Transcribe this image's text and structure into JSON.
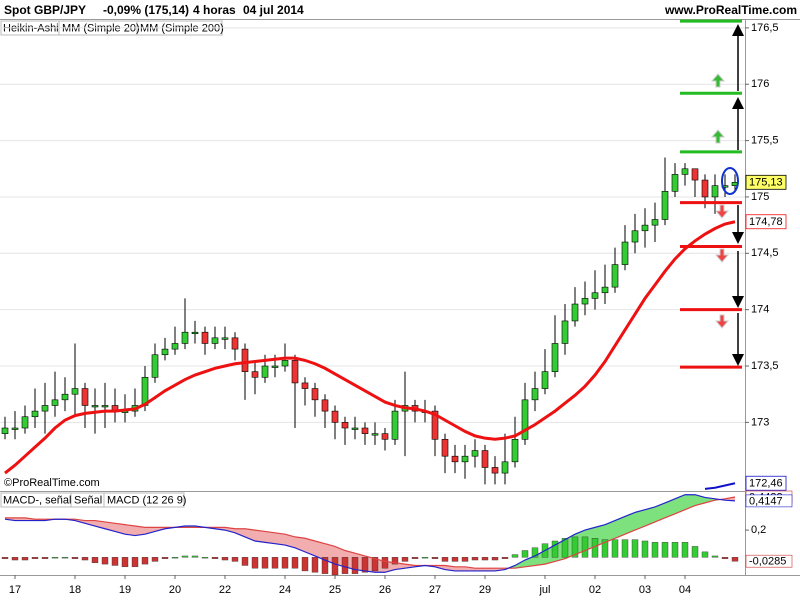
{
  "header": {
    "symbol": "Spot GBP/JPY",
    "change": "-0,09% (175,14)",
    "timeframe": "4 horas",
    "date": "04 jul 2014",
    "site": "www.ProRealTime.com"
  },
  "watermark": "©ProRealTime.com",
  "chart_data": [
    {
      "type": "candlestick",
      "name": "Heikin-Ashi",
      "up_color": "#33cc33",
      "down_color": "#ee3333",
      "categories": [
        null,
        "17",
        null,
        null,
        null,
        null,
        null,
        "18",
        null,
        null,
        null,
        null,
        "19",
        null,
        null,
        null,
        null,
        "20",
        null,
        null,
        null,
        null,
        "22",
        null,
        null,
        null,
        null,
        null,
        "24",
        null,
        null,
        null,
        null,
        "25",
        null,
        null,
        null,
        null,
        "26",
        null,
        null,
        null,
        null,
        "27",
        null,
        null,
        null,
        null,
        "29",
        null,
        null,
        null,
        null,
        null,
        "jul",
        null,
        null,
        null,
        null,
        "02",
        null,
        null,
        null,
        null,
        "03",
        null,
        null,
        null,
        "04",
        null,
        null,
        null,
        null,
        null
      ],
      "open": [
        172.9,
        172.95,
        172.95,
        173.05,
        173.1,
        173.15,
        173.2,
        173.25,
        173.3,
        173.15,
        173.15,
        173.15,
        173.1,
        173.1,
        173.15,
        173.4,
        173.6,
        173.65,
        173.7,
        173.8,
        173.8,
        173.7,
        173.75,
        173.75,
        173.65,
        173.45,
        173.4,
        173.5,
        173.5,
        173.55,
        173.35,
        173.3,
        173.2,
        173.1,
        173.0,
        172.95,
        172.95,
        172.9,
        172.9,
        172.85,
        173.1,
        173.15,
        173.1,
        173.1,
        172.85,
        172.7,
        172.65,
        172.7,
        172.75,
        172.6,
        172.55,
        172.65,
        172.85,
        173.2,
        173.3,
        173.45,
        173.7,
        173.9,
        174.05,
        174.1,
        174.15,
        174.2,
        174.4,
        174.6,
        174.7,
        174.75,
        174.8,
        175.05,
        175.2,
        175.25,
        175.15,
        175.0,
        175.1,
        175.1
      ],
      "high": [
        173.05,
        173.1,
        173.15,
        173.3,
        173.35,
        173.45,
        173.4,
        173.7,
        173.35,
        173.3,
        173.35,
        173.3,
        173.25,
        173.3,
        173.5,
        173.7,
        173.75,
        173.85,
        174.1,
        173.9,
        173.85,
        173.85,
        173.85,
        173.8,
        173.7,
        173.55,
        173.6,
        173.6,
        173.7,
        173.6,
        173.4,
        173.35,
        173.25,
        173.15,
        173.05,
        173.05,
        173.0,
        173.0,
        172.95,
        173.2,
        173.45,
        173.2,
        173.2,
        173.15,
        172.9,
        172.8,
        172.8,
        172.85,
        172.8,
        172.7,
        172.9,
        173.05,
        173.35,
        173.45,
        173.65,
        173.95,
        174.05,
        174.2,
        174.25,
        174.35,
        174.4,
        174.55,
        174.75,
        174.85,
        174.9,
        174.95,
        175.35,
        175.3,
        175.3,
        175.25,
        175.2,
        175.2,
        175.2,
        175.2
      ],
      "low": [
        172.85,
        172.85,
        172.9,
        172.95,
        172.9,
        173.05,
        173.1,
        173.05,
        172.95,
        172.9,
        172.95,
        173.0,
        173.0,
        173.05,
        173.1,
        173.35,
        173.55,
        173.6,
        173.65,
        173.7,
        173.6,
        173.65,
        173.65,
        173.55,
        173.2,
        173.25,
        173.35,
        173.4,
        173.45,
        172.95,
        173.15,
        173.05,
        172.95,
        172.85,
        172.8,
        172.85,
        172.8,
        172.8,
        172.75,
        172.8,
        172.7,
        173.0,
        173.0,
        172.7,
        172.55,
        172.55,
        172.5,
        172.6,
        172.45,
        172.45,
        172.45,
        172.6,
        172.8,
        173.1,
        173.25,
        173.4,
        173.6,
        173.85,
        173.95,
        174.0,
        174.05,
        174.15,
        174.35,
        174.5,
        174.55,
        174.6,
        174.75,
        175.0,
        175.1,
        175.0,
        174.9,
        174.85,
        175.0,
        175.05
      ],
      "close": [
        172.95,
        172.95,
        173.05,
        173.1,
        173.15,
        173.2,
        173.25,
        173.3,
        173.15,
        173.15,
        173.15,
        173.1,
        173.1,
        173.15,
        173.4,
        173.6,
        173.65,
        173.7,
        173.8,
        173.8,
        173.7,
        173.75,
        173.75,
        173.65,
        173.45,
        173.4,
        173.5,
        173.5,
        173.55,
        173.35,
        173.3,
        173.2,
        173.1,
        173.0,
        172.95,
        172.95,
        172.9,
        172.9,
        172.85,
        173.1,
        173.15,
        173.1,
        173.1,
        172.85,
        172.7,
        172.65,
        172.7,
        172.75,
        172.6,
        172.55,
        172.65,
        172.85,
        173.2,
        173.3,
        173.45,
        173.7,
        173.9,
        174.05,
        174.1,
        174.15,
        174.2,
        174.4,
        174.6,
        174.7,
        174.75,
        174.8,
        175.05,
        175.2,
        175.25,
        175.15,
        175.0,
        175.1,
        175.1,
        175.13
      ],
      "series": [
        {
          "name": "MM (Simple 20)",
          "color": "#ee1111",
          "values": [
            172.55,
            172.62,
            172.7,
            172.78,
            172.86,
            172.95,
            173.02,
            173.06,
            173.08,
            173.09,
            173.1,
            173.1,
            173.11,
            173.12,
            173.16,
            173.22,
            173.28,
            173.33,
            173.38,
            173.42,
            173.45,
            173.48,
            173.5,
            173.52,
            173.53,
            173.54,
            173.55,
            173.56,
            173.57,
            173.57,
            173.55,
            173.52,
            173.48,
            173.43,
            173.38,
            173.33,
            173.28,
            173.23,
            173.18,
            173.15,
            173.13,
            173.12,
            173.1,
            173.07,
            173.02,
            172.97,
            172.92,
            172.88,
            172.86,
            172.85,
            172.86,
            172.88,
            172.93,
            172.98,
            173.04,
            173.1,
            173.17,
            173.24,
            173.32,
            173.42,
            173.54,
            173.68,
            173.82,
            173.96,
            174.1,
            174.22,
            174.34,
            174.45,
            174.54,
            174.61,
            174.67,
            174.72,
            174.76,
            174.78
          ]
        },
        {
          "name": "MM (Simple 200)",
          "color": "#1111cc",
          "values": [
            null,
            null,
            null,
            null,
            null,
            null,
            null,
            null,
            null,
            null,
            null,
            null,
            null,
            null,
            null,
            null,
            null,
            null,
            null,
            null,
            null,
            null,
            null,
            null,
            null,
            null,
            null,
            null,
            null,
            null,
            null,
            null,
            null,
            null,
            null,
            null,
            null,
            null,
            null,
            null,
            null,
            null,
            null,
            null,
            null,
            null,
            null,
            null,
            null,
            null,
            null,
            null,
            null,
            null,
            null,
            null,
            null,
            null,
            null,
            null,
            null,
            null,
            null,
            null,
            null,
            null,
            null,
            null,
            null,
            null,
            172.41,
            172.42,
            172.44,
            172.46
          ]
        }
      ],
      "ylim": [
        172.4,
        176.57
      ],
      "yticks": [
        {
          "value": 173,
          "label": "173"
        },
        {
          "value": 173.5,
          "label": "173,5"
        },
        174,
        {
          "value": 174.5,
          "label": "174,5"
        },
        175,
        {
          "value": 175.5,
          "label": "175,5"
        },
        176,
        {
          "value": 176.5,
          "label": "176,5"
        }
      ],
      "grid": true,
      "resistance_levels": {
        "color": "#22bb22",
        "values": [
          176.56,
          175.92,
          175.4
        ]
      },
      "support_levels": {
        "color": "#ee1111",
        "values": [
          174.95,
          174.56,
          174.0,
          173.49
        ]
      },
      "price_markers": [
        {
          "value": 175.13,
          "label": "175,13",
          "color": "#000000",
          "background": "#ffff66"
        },
        {
          "value": 174.78,
          "label": "174,78",
          "color": "#ee1111",
          "background": "#ffffff"
        },
        {
          "value": 172.46,
          "label": "172,46",
          "color": "#1111cc",
          "background": "#ffffff"
        }
      ]
    },
    {
      "type": "macd",
      "positive_color": "#33cc33",
      "negative_color": "#cc3333",
      "fill_up_color": "#66dd66",
      "fill_down_color": "#f0a0a0",
      "series": [
        {
          "name": "MACD-, señal",
          "color": "#aa2222",
          "values": [
            -0.01,
            -0.02,
            -0.02,
            -0.01,
            -0.01,
            0,
            0,
            -0.01,
            -0.02,
            -0.04,
            -0.05,
            -0.06,
            -0.07,
            -0.07,
            -0.05,
            -0.03,
            -0.01,
            0,
            0.01,
            0.01,
            0,
            -0.01,
            -0.02,
            -0.03,
            -0.06,
            -0.08,
            -0.08,
            -0.08,
            -0.08,
            -0.08,
            -0.1,
            -0.11,
            -0.12,
            -0.13,
            -0.12,
            -0.12,
            -0.11,
            -0.1,
            -0.08,
            -0.05,
            -0.03,
            -0.01,
            0,
            -0.01,
            -0.03,
            -0.03,
            -0.03,
            -0.02,
            -0.02,
            -0.02,
            -0.01,
            0.02,
            0.05,
            0.07,
            0.1,
            0.12,
            0.14,
            0.15,
            0.15,
            0.14,
            0.13,
            0.13,
            0.13,
            0.13,
            0.12,
            0.11,
            0.11,
            0.11,
            0.11,
            0.08,
            0.04,
            0.01,
            -0.01,
            -0.0285
          ]
        },
        {
          "name": "Señal",
          "color": "#dd4444",
          "values": [
            0.29,
            0.29,
            0.29,
            0.28,
            0.28,
            0.28,
            0.28,
            0.28,
            0.27,
            0.27,
            0.26,
            0.25,
            0.24,
            0.23,
            0.22,
            0.22,
            0.22,
            0.22,
            0.22,
            0.22,
            0.22,
            0.22,
            0.22,
            0.21,
            0.21,
            0.2,
            0.19,
            0.18,
            0.17,
            0.15,
            0.14,
            0.12,
            0.1,
            0.08,
            0.05,
            0.03,
            0.01,
            -0.01,
            -0.03,
            -0.04,
            -0.05,
            -0.06,
            -0.06,
            -0.06,
            -0.06,
            -0.07,
            -0.07,
            -0.08,
            -0.08,
            -0.08,
            -0.08,
            -0.08,
            -0.07,
            -0.06,
            -0.05,
            -0.03,
            -0.01,
            0.02,
            0.05,
            0.08,
            0.11,
            0.14,
            0.17,
            0.2,
            0.23,
            0.26,
            0.29,
            0.32,
            0.35,
            0.38,
            0.4,
            0.42,
            0.43,
            0.4432
          ]
        },
        {
          "name": "MACD (12 26 9)",
          "color": "#2222cc",
          "values": [
            0.28,
            0.27,
            0.27,
            0.27,
            0.27,
            0.28,
            0.28,
            0.27,
            0.25,
            0.23,
            0.21,
            0.19,
            0.17,
            0.16,
            0.17,
            0.19,
            0.21,
            0.22,
            0.23,
            0.23,
            0.22,
            0.21,
            0.2,
            0.18,
            0.15,
            0.12,
            0.11,
            0.1,
            0.09,
            0.07,
            0.04,
            0.01,
            -0.02,
            -0.05,
            -0.07,
            -0.09,
            -0.1,
            -0.11,
            -0.11,
            -0.09,
            -0.08,
            -0.07,
            -0.06,
            -0.07,
            -0.09,
            -0.1,
            -0.1,
            -0.1,
            -0.1,
            -0.1,
            -0.09,
            -0.06,
            -0.02,
            0.01,
            0.05,
            0.09,
            0.13,
            0.17,
            0.2,
            0.22,
            0.24,
            0.27,
            0.3,
            0.33,
            0.35,
            0.37,
            0.4,
            0.43,
            0.46,
            0.46,
            0.44,
            0.43,
            0.42,
            0.4147
          ]
        }
      ],
      "ylim": [
        -0.13,
        0.48
      ],
      "yticks": [
        {
          "value": 0.2,
          "label": "0,2"
        }
      ],
      "markers": [
        {
          "value": 0.4432,
          "label": "0,4432",
          "color": "#cc3333"
        },
        {
          "value": 0.4147,
          "label": "0,4147",
          "color": "#2222cc"
        },
        {
          "value": -0.0285,
          "label": "-0,0285",
          "color": "#cc3333"
        }
      ]
    }
  ]
}
